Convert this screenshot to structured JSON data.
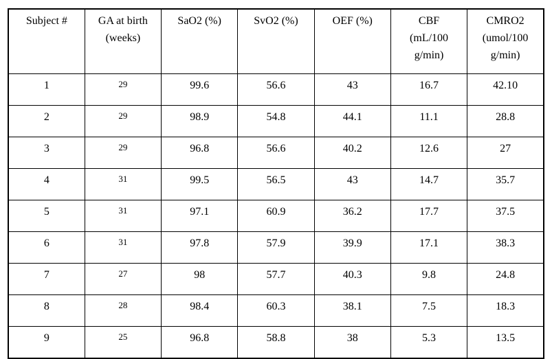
{
  "colors": {
    "background": "#ffffff",
    "border": "#000000",
    "text": "#000000"
  },
  "table": {
    "columns": [
      "Subject #",
      [
        "GA at birth",
        "(weeks)"
      ],
      "SaO2 (%)",
      "SvO2 (%)",
      "OEF (%)",
      [
        "CBF",
        "(mL/100",
        "g/min)"
      ],
      [
        "CMRO2",
        "(umol/100",
        "g/min)"
      ]
    ],
    "rows": [
      [
        "1",
        "29",
        "99.6",
        "56.6",
        "43",
        "16.7",
        "42.10"
      ],
      [
        "2",
        "29",
        "98.9",
        "54.8",
        "44.1",
        "11.1",
        "28.8"
      ],
      [
        "3",
        "29",
        "96.8",
        "56.6",
        "40.2",
        "12.6",
        "27"
      ],
      [
        "4",
        "31",
        "99.5",
        "56.5",
        "43",
        "14.7",
        "35.7"
      ],
      [
        "5",
        "31",
        "97.1",
        "60.9",
        "36.2",
        "17.7",
        "37.5"
      ],
      [
        "6",
        "31",
        "97.8",
        "57.9",
        "39.9",
        "17.1",
        "38.3"
      ],
      [
        "7",
        "27",
        "98",
        "57.7",
        "40.3",
        "9.8",
        "24.8"
      ],
      [
        "8",
        "28",
        "98.4",
        "60.3",
        "38.1",
        "7.5",
        "18.3"
      ],
      [
        "9",
        "25",
        "96.8",
        "58.8",
        "38",
        "5.3",
        "13.5"
      ]
    ]
  }
}
